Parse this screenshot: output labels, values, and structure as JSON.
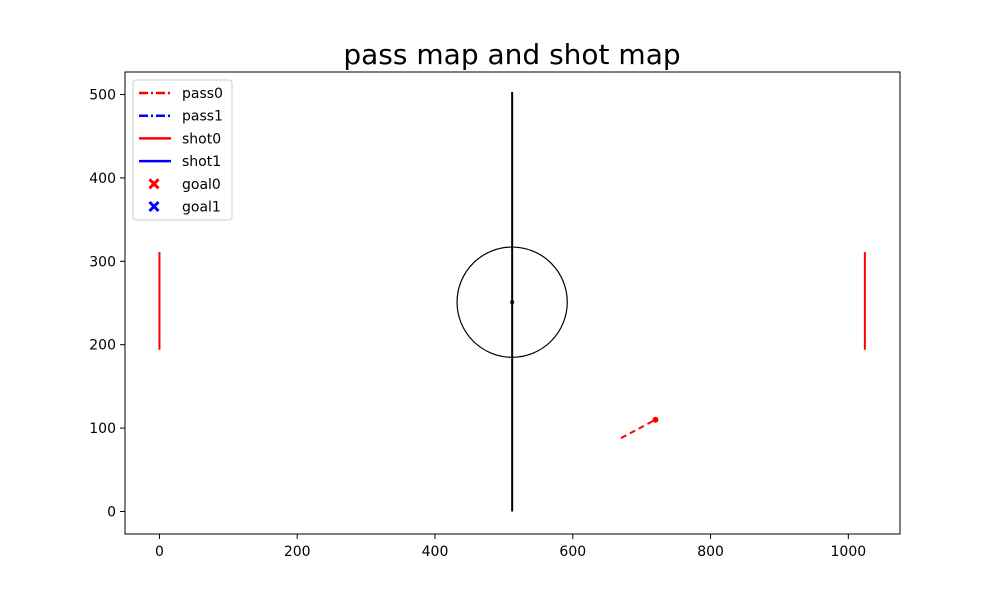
{
  "chart_data": {
    "type": "line",
    "title": "pass map and shot map",
    "xlabel": "",
    "ylabel": "",
    "xlim": [
      -50,
      1075
    ],
    "ylim": [
      527,
      -27
    ],
    "y_inverted": true,
    "grid": false,
    "x_ticks": [
      0,
      200,
      400,
      600,
      800,
      1000
    ],
    "y_ticks": [
      0,
      100,
      200,
      300,
      400,
      500
    ],
    "pitch": {
      "outline": {
        "x0": 0,
        "y0": 0,
        "x1": 1024,
        "y1": 503
      },
      "halfway_x": 512,
      "center": [
        512,
        251
      ],
      "center_circle_radius_x": 80,
      "center_circle_radius_y": 80,
      "left_box": {
        "x0": 0,
        "y0": 161,
        "x1": 72,
        "y1": 340
      },
      "right_box": {
        "x0": 952,
        "y0": 161,
        "x1": 1024,
        "y1": 340
      },
      "goal_y": [
        194,
        311
      ],
      "goal_color": "#ff0000",
      "line_color": "#000000"
    },
    "legend_position": "upper-left",
    "legend": [
      {
        "label": "pass0",
        "kind": "dashdot",
        "color": "#ff0000"
      },
      {
        "label": "pass1",
        "kind": "dashdot",
        "color": "#0000ff"
      },
      {
        "label": "shot0",
        "kind": "solid",
        "color": "#ff0000"
      },
      {
        "label": "shot1",
        "kind": "solid",
        "color": "#0000ff"
      },
      {
        "label": "goal0",
        "kind": "x",
        "color": "#ff0000"
      },
      {
        "label": "goal1",
        "kind": "x",
        "color": "#0000ff"
      }
    ],
    "passes": [
      {
        "team": 0,
        "from": [
          670,
          88
        ],
        "to": [
          720,
          110
        ],
        "color": "#ff0000"
      }
    ],
    "shots": [],
    "goals": []
  }
}
